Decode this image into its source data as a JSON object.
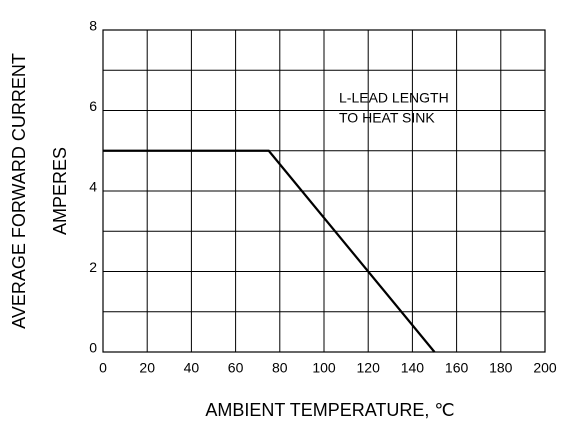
{
  "chart_data": {
    "type": "line",
    "x_label": "AMBIENT TEMPERATURE, ℃",
    "y_label": [
      "AVERAGE FORWARD CURRENT",
      "AMPERES"
    ],
    "annotation": [
      "L-LEAD LENGTH",
      "TO HEAT SINK"
    ],
    "x": [
      0,
      75,
      150
    ],
    "series": [
      {
        "name": null,
        "color": "#000000",
        "values": [
          5,
          5,
          0
        ]
      }
    ],
    "xlim": [
      0,
      200
    ],
    "xticks": [
      0,
      20,
      40,
      60,
      80,
      100,
      120,
      140,
      160,
      180,
      200
    ],
    "ylim": [
      0,
      8
    ],
    "yticks": [
      0,
      2,
      4,
      6,
      8
    ],
    "y_minor_ticks": [
      1,
      3,
      5,
      7
    ],
    "grid": true
  }
}
